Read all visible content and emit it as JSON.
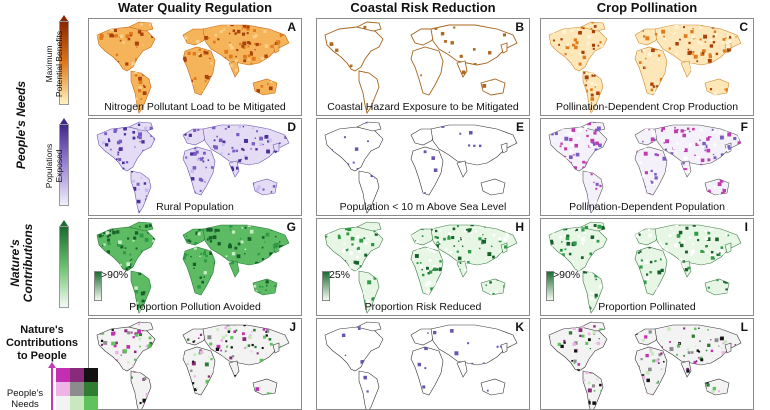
{
  "columns": [
    "Water Quality Regulation",
    "Coastal Risk Reduction",
    "Crop Pollination"
  ],
  "panels": [
    {
      "letter": "A",
      "caption": "Nitrogen Pollutant Load to be Mitigated",
      "inset": ""
    },
    {
      "letter": "B",
      "caption": "Coastal Hazard Exposure to be Mitigated",
      "inset": ""
    },
    {
      "letter": "C",
      "caption": "Pollination-Dependent Crop Production",
      "inset": ""
    },
    {
      "letter": "D",
      "caption": "Rural Population",
      "inset": ""
    },
    {
      "letter": "E",
      "caption": "Population < 10 m Above Sea Level",
      "inset": ""
    },
    {
      "letter": "F",
      "caption": "Pollination-Dependent Population",
      "inset": ""
    },
    {
      "letter": "G",
      "caption": "Proportion Pollution Avoided",
      "inset": ">90%"
    },
    {
      "letter": "H",
      "caption": "Proportion Risk Reduced",
      "inset": "25%"
    },
    {
      "letter": "I",
      "caption": "Proportion Pollinated",
      "inset": ">90%"
    },
    {
      "letter": "J",
      "caption": "",
      "inset": ""
    },
    {
      "letter": "K",
      "caption": "",
      "inset": ""
    },
    {
      "letter": "L",
      "caption": "",
      "inset": ""
    }
  ],
  "legends": {
    "benefits": {
      "label_line1": "Maximum",
      "label_line2": "Potential Benefits",
      "color_high": "#8b2500",
      "color_low": "#fff4c2"
    },
    "populations": {
      "label_line1": "Populations",
      "label_line2": "Exposed",
      "color_high": "#3f2a8a",
      "color_low": "#f3f0fa"
    },
    "contributions": {
      "color_high": "#1b6b30",
      "color_low": "#f4fbf4"
    }
  },
  "side_labels": {
    "needs": "People's Needs",
    "contributions_line1": "Nature's",
    "contributions_line2": "Contributions"
  },
  "bivariate": {
    "title": "Nature's Contributions to People",
    "needs_label": "People's Needs",
    "colors": [
      "#c22fb0",
      "#8a2a7a",
      "#121212",
      "#efb3e6",
      "#8c8c8c",
      "#2e7d32",
      "#f3f3f3",
      "#c8e8c0",
      "#5fc25a"
    ]
  },
  "palette": {
    "water_needs": "#e07a1a",
    "water_needs_dark": "#a8410a",
    "population": "#7b5cc4",
    "population_dark": "#4b2f9a",
    "green": "#2d9a45",
    "green_dark": "#17602a",
    "magenta": "#c23ab0",
    "coast": "#444444"
  }
}
